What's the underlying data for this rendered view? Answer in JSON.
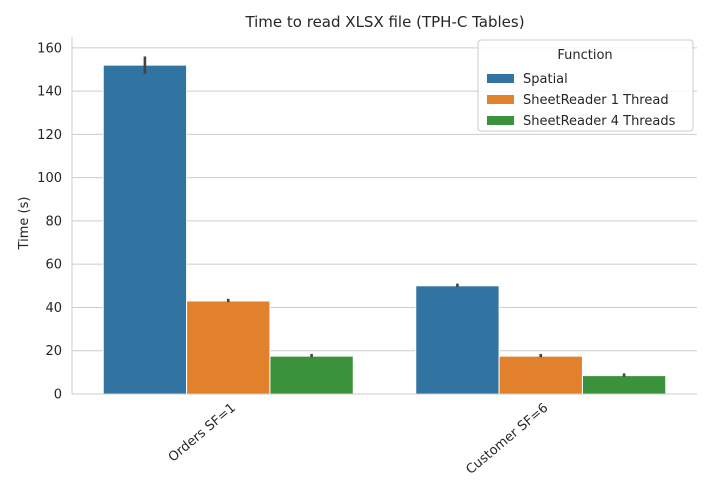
{
  "chart_data": {
    "type": "bar",
    "title": "Time to read XLSX file (TPH-C Tables)",
    "xlabel": "",
    "ylabel": "Time (s)",
    "ylim": [
      0,
      165
    ],
    "yticks": [
      0,
      20,
      40,
      60,
      80,
      100,
      120,
      140,
      160
    ],
    "categories": [
      "Orders SF=1",
      "Customer SF=6"
    ],
    "series": [
      {
        "name": "Spatial",
        "color": "#3274a1",
        "values": [
          152,
          50
        ],
        "err_low": [
          148,
          49.5
        ],
        "err_high": [
          156,
          51
        ]
      },
      {
        "name": "SheetReader 1 Thread",
        "color": "#e1812c",
        "values": [
          43,
          17.5
        ],
        "err_low": [
          42.5,
          17
        ],
        "err_high": [
          44,
          18.5
        ]
      },
      {
        "name": "SheetReader 4 Threads",
        "color": "#3a923a",
        "values": [
          17.5,
          8.5
        ],
        "err_low": [
          17,
          8
        ],
        "err_high": [
          18.5,
          9.5
        ]
      }
    ],
    "legend": {
      "title": "Function",
      "position": "top-right"
    },
    "grid": "y"
  }
}
